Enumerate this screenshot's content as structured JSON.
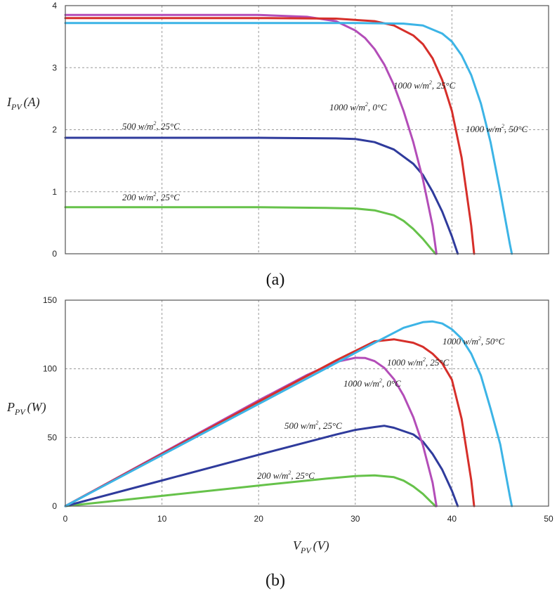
{
  "chart_data": [
    {
      "type": "line",
      "caption": "(a)",
      "ylabel": "I",
      "ylabel_sub": "PV",
      "ylabel_unit": "(A)",
      "xlabel": "",
      "xlim": [
        0,
        50
      ],
      "ylim": [
        0,
        4
      ],
      "xticks": [],
      "yticks": [
        "0",
        "1",
        "2",
        "3",
        "4"
      ],
      "grid": true,
      "series": [
        {
          "name": "200 w/m², 25°C",
          "color": "#66c24a",
          "x": [
            0,
            10,
            20,
            27,
            30,
            32,
            34,
            35,
            36,
            37,
            37.8,
            38.3
          ],
          "y": [
            0.75,
            0.75,
            0.75,
            0.74,
            0.73,
            0.7,
            0.62,
            0.53,
            0.4,
            0.24,
            0.09,
            0
          ]
        },
        {
          "name": "500 w/m², 25°C",
          "color": "#2f3b9c",
          "x": [
            0,
            10,
            20,
            28,
            30,
            32,
            34,
            36,
            37,
            38,
            39,
            40,
            40.6
          ],
          "y": [
            1.87,
            1.87,
            1.87,
            1.86,
            1.85,
            1.8,
            1.68,
            1.45,
            1.27,
            1.0,
            0.68,
            0.28,
            0
          ]
        },
        {
          "name": "1000 w/m², 0°C",
          "color": "#b34db8",
          "x": [
            0,
            10,
            20,
            25,
            28,
            30,
            31,
            32,
            33,
            34,
            35,
            36,
            37,
            38,
            38.4
          ],
          "y": [
            3.85,
            3.85,
            3.85,
            3.82,
            3.75,
            3.6,
            3.48,
            3.3,
            3.05,
            2.72,
            2.3,
            1.8,
            1.2,
            0.45,
            0
          ]
        },
        {
          "name": "1000 w/m², 25°C",
          "color": "#d62f2a",
          "x": [
            0,
            10,
            20,
            28,
            32,
            34,
            36,
            37,
            38,
            39,
            40,
            41,
            42,
            42.3
          ],
          "y": [
            3.8,
            3.8,
            3.8,
            3.79,
            3.75,
            3.68,
            3.52,
            3.38,
            3.15,
            2.8,
            2.3,
            1.55,
            0.45,
            0
          ]
        },
        {
          "name": "1000 w/m², 50°C",
          "color": "#3cb4e6",
          "x": [
            0,
            10,
            20,
            30,
            35,
            37,
            39,
            40,
            41,
            42,
            43,
            44,
            45,
            46,
            46.2
          ],
          "y": [
            3.72,
            3.72,
            3.72,
            3.72,
            3.71,
            3.68,
            3.55,
            3.42,
            3.2,
            2.88,
            2.42,
            1.8,
            1.0,
            0.15,
            0
          ]
        }
      ],
      "annotations": [
        {
          "text": "1000 w/m",
          "sup": "2",
          "rest": ", 25°C"
        },
        {
          "text": "1000 w/m",
          "sup": "2",
          "rest": ", 0°C"
        },
        {
          "text": "1000 w/m",
          "sup": "2",
          "rest": ", 50°C"
        },
        {
          "text": "500 w/m",
          "sup": "2",
          "rest": ", 25°C"
        },
        {
          "text": "200 w/m",
          "sup": "2",
          "rest": ", 25°C"
        }
      ]
    },
    {
      "type": "line",
      "caption": "(b)",
      "ylabel": "P",
      "ylabel_sub": "PV",
      "ylabel_unit": "(W)",
      "xlabel": "V",
      "xlabel_sub": "PV",
      "xlabel_unit": "(V)",
      "xlim": [
        0,
        50
      ],
      "ylim": [
        0,
        150
      ],
      "xticks": [
        "0",
        "10",
        "20",
        "30",
        "40",
        "50"
      ],
      "yticks": [
        "0",
        "50",
        "100",
        "150"
      ],
      "grid": true,
      "series": [
        {
          "name": "200 w/m², 25°C",
          "color": "#66c24a",
          "x": [
            0,
            10,
            20,
            27,
            30,
            32,
            34,
            35,
            36,
            37,
            37.8,
            38.3
          ],
          "y": [
            0,
            7.5,
            15,
            20,
            21.9,
            22.4,
            21.1,
            18.6,
            14.4,
            8.9,
            3.4,
            0
          ]
        },
        {
          "name": "500 w/m², 25°C",
          "color": "#2f3b9c",
          "x": [
            0,
            10,
            20,
            28,
            30,
            32,
            33,
            34,
            36,
            37,
            38,
            39,
            40,
            40.6
          ],
          "y": [
            0,
            18.7,
            37.4,
            52.1,
            55.5,
            57.6,
            58.5,
            57.1,
            52.2,
            47,
            38,
            26.5,
            11.2,
            0
          ]
        },
        {
          "name": "1000 w/m², 0°C",
          "color": "#b34db8",
          "x": [
            0,
            10,
            20,
            25,
            28,
            30,
            31,
            32,
            33,
            34,
            35,
            36,
            37,
            38,
            38.4
          ],
          "y": [
            0,
            38.5,
            77,
            95.5,
            105,
            108,
            107.9,
            105.6,
            100.7,
            92.5,
            80.5,
            64.8,
            44.4,
            17.1,
            0
          ]
        },
        {
          "name": "1000 w/m², 25°C",
          "color": "#d62f2a",
          "x": [
            0,
            10,
            20,
            28,
            32,
            34,
            36,
            37,
            38,
            39,
            40,
            41,
            42,
            42.3
          ],
          "y": [
            0,
            38,
            76,
            106.1,
            120,
            121.5,
            119,
            116,
            111,
            104,
            92,
            63.6,
            18.9,
            0
          ]
        },
        {
          "name": "1000 w/m², 50°C",
          "color": "#3cb4e6",
          "x": [
            0,
            10,
            20,
            30,
            35,
            37,
            38,
            39,
            40,
            41,
            42,
            43,
            44,
            45,
            46,
            46.2
          ],
          "y": [
            0,
            37.2,
            74.4,
            111.6,
            129.9,
            134,
            134.5,
            133,
            128.8,
            122,
            111,
            95,
            71,
            45,
            6.9,
            0
          ]
        }
      ],
      "annotations": [
        {
          "text": "1000 w/m",
          "sup": "2",
          "rest": ", 50°C"
        },
        {
          "text": "1000 w/m",
          "sup": "2",
          "rest": ", 25°C"
        },
        {
          "text": "1000 w/m",
          "sup": "2",
          "rest": ", 0°C"
        },
        {
          "text": "500 w/m",
          "sup": "2",
          "rest": ", 25°C"
        },
        {
          "text": "200 w/m",
          "sup": "2",
          "rest": ", 25°C"
        }
      ]
    }
  ]
}
